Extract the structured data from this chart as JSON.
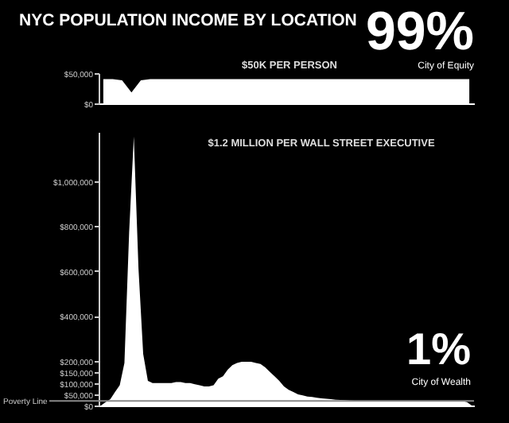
{
  "chart_data": [
    {
      "type": "area",
      "title": "NYC POPULATION INCOME BY LOCATION",
      "subtitle": "$50K PER PERSON",
      "annotations": [
        "99%",
        "City of Equity"
      ],
      "categories": [
        null,
        null,
        null,
        null,
        null,
        null,
        null,
        null,
        null,
        null,
        null,
        null,
        null,
        null,
        null,
        null,
        null,
        null,
        null,
        null,
        null,
        null,
        null,
        null,
        null,
        null,
        null,
        null,
        null,
        null,
        null,
        null,
        null,
        null,
        null,
        null,
        null,
        null,
        null,
        null
      ],
      "values": [
        40000,
        40000,
        38000,
        18000,
        38000,
        40000,
        40000,
        40000,
        40000,
        40000,
        40000,
        40000,
        40000,
        40000,
        40000,
        40000,
        40000,
        40000,
        40000,
        40000,
        40000,
        40000,
        40000,
        40000,
        40000,
        40000,
        40000,
        40000,
        40000,
        40000,
        40000,
        40000,
        40000,
        40000,
        40000,
        40000,
        40000,
        40000,
        40000,
        40000
      ],
      "color": "#ffffff",
      "ylim": [
        0,
        50000
      ],
      "yticks": [
        {
          "value": 0,
          "label": "$0"
        },
        {
          "value": 50000,
          "label": "$50,000"
        }
      ]
    },
    {
      "type": "area",
      "subtitle": "$1.2 MILLION PER WALL STREET EXECUTIVE",
      "annotations": [
        "1%",
        "City of Wealth"
      ],
      "categories": [
        null,
        null,
        null,
        null,
        null,
        null,
        null,
        null,
        null,
        null,
        null,
        null,
        null,
        null,
        null,
        null,
        null,
        null,
        null,
        null,
        null,
        null,
        null,
        null,
        null,
        null,
        null,
        null,
        null,
        null,
        null,
        null,
        null,
        null,
        null,
        null,
        null,
        null,
        null,
        null,
        null,
        null,
        null,
        null,
        null,
        null,
        null,
        null,
        null,
        null,
        null,
        null,
        null,
        null,
        null,
        null,
        null,
        null,
        null,
        null,
        null,
        null,
        null,
        null,
        null,
        null,
        null,
        null,
        null,
        null,
        null,
        null,
        null,
        null,
        null,
        null,
        null,
        null,
        null,
        null
      ],
      "values": [
        0,
        15000,
        28000,
        60000,
        90000,
        190000,
        770000,
        1200000,
        610000,
        230000,
        110000,
        100000,
        100000,
        100000,
        100000,
        100000,
        105000,
        105000,
        100000,
        100000,
        95000,
        90000,
        85000,
        85000,
        90000,
        120000,
        130000,
        160000,
        180000,
        190000,
        195000,
        195000,
        195000,
        190000,
        185000,
        170000,
        150000,
        130000,
        110000,
        85000,
        70000,
        60000,
        50000,
        45000,
        40000,
        38000,
        35000,
        32000,
        30000,
        28000,
        26000,
        25000,
        24000,
        22000,
        21000,
        20000,
        20000,
        20000,
        20000,
        20000,
        20000,
        20000,
        20000,
        20000,
        20000,
        20000,
        20000,
        20000,
        20000,
        20000,
        20000,
        20000,
        20000,
        20000,
        20000,
        20000,
        20000,
        20000,
        15000,
        0
      ],
      "color": "#ffffff",
      "ylim": [
        0,
        1220000
      ],
      "yticks": [
        {
          "value": 0,
          "label": "$0"
        },
        {
          "value": 50000,
          "label": "$50,000"
        },
        {
          "value": 100000,
          "label": "$100,000"
        },
        {
          "value": 150000,
          "label": "$150,000"
        },
        {
          "value": 200000,
          "label": "$200,000"
        },
        {
          "value": 400000,
          "label": "$400,000"
        },
        {
          "value": 600000,
          "label": "$600,000"
        },
        {
          "value": 800000,
          "label": "$800,000"
        },
        {
          "value": 1000000,
          "label": "$1,000,000"
        }
      ],
      "ref_lines": [
        {
          "axis": "y",
          "value": 20000,
          "label": "Poverty Line",
          "color": "#888888"
        }
      ]
    }
  ]
}
